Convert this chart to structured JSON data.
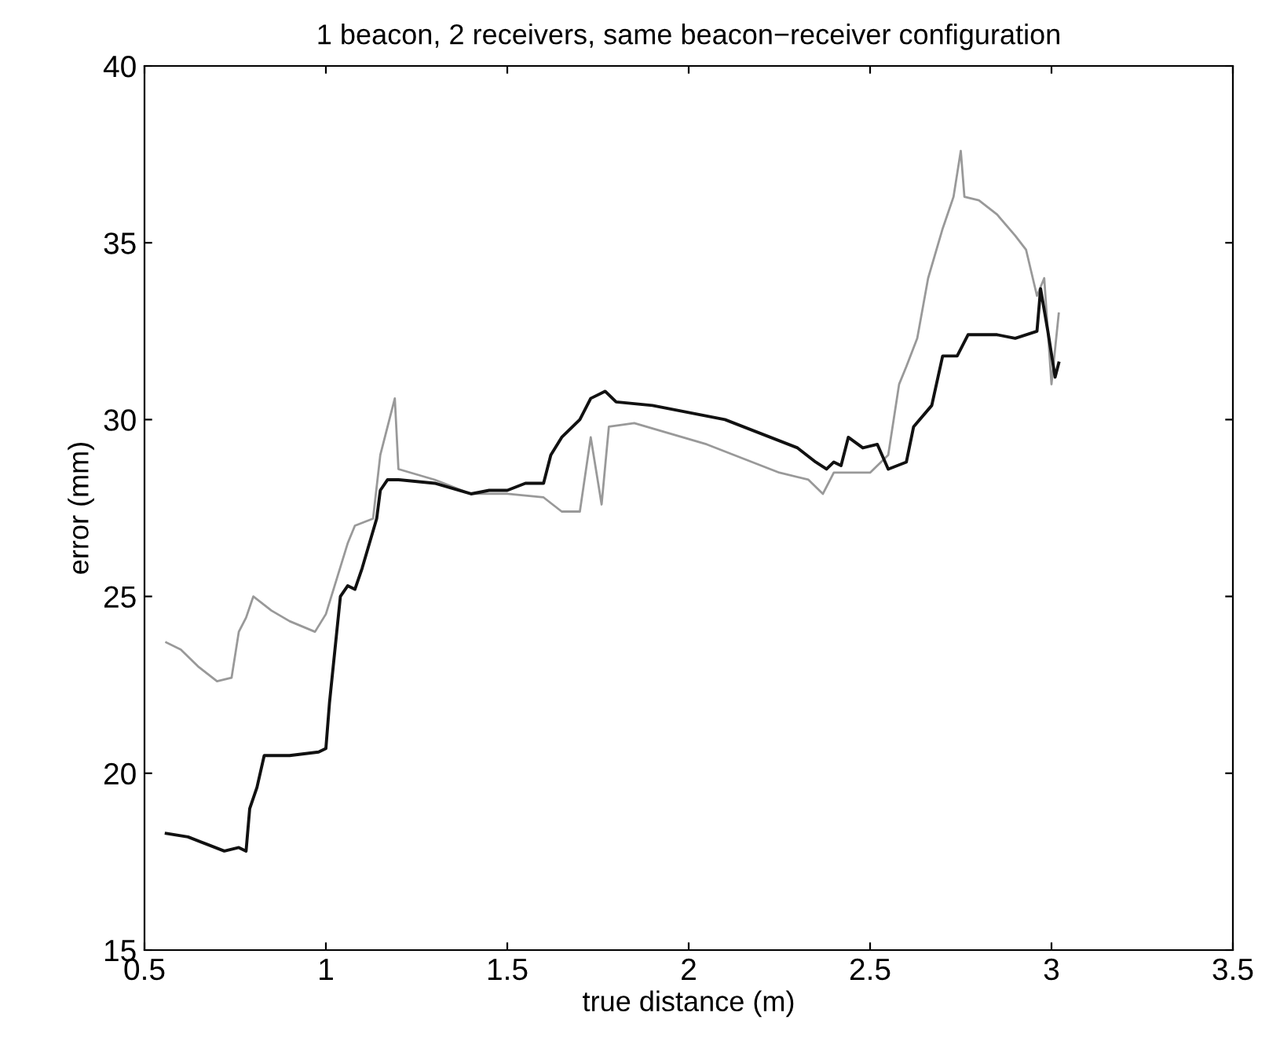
{
  "chart_data": {
    "type": "line",
    "title": "1 beacon, 2 receivers, same beacon−receiver configuration",
    "xlabel": "true distance (m)",
    "ylabel": "error (mm)",
    "xlim": [
      0.5,
      3.5
    ],
    "xticks": [
      0.5,
      1,
      1.5,
      2,
      2.5,
      3,
      3.5
    ],
    "ylim": [
      15,
      40
    ],
    "yticks": [
      15,
      20,
      25,
      30,
      35,
      40
    ],
    "grid": false,
    "marker": "none",
    "line_style": "solid",
    "series": [
      {
        "color": "#999999",
        "x": [
          0.56,
          0.6,
          0.65,
          0.7,
          0.74,
          0.76,
          0.78,
          0.8,
          0.85,
          0.9,
          0.97,
          1.0,
          1.03,
          1.06,
          1.08,
          1.13,
          1.15,
          1.17,
          1.19,
          1.2,
          1.3,
          1.4,
          1.5,
          1.6,
          1.65,
          1.7,
          1.73,
          1.76,
          1.78,
          1.85,
          1.95,
          2.05,
          2.15,
          2.25,
          2.33,
          2.37,
          2.4,
          2.5,
          2.55,
          2.58,
          2.6,
          2.63,
          2.66,
          2.7,
          2.73,
          2.75,
          2.76,
          2.8,
          2.85,
          2.9,
          2.93,
          2.96,
          2.98,
          3.0,
          3.02
        ],
        "values": [
          23.7,
          23.5,
          23.0,
          22.6,
          22.7,
          24.0,
          24.4,
          25.0,
          24.6,
          24.3,
          24.0,
          24.5,
          25.5,
          26.5,
          27.0,
          27.2,
          29.0,
          29.8,
          30.6,
          28.6,
          28.3,
          27.9,
          27.9,
          27.8,
          27.4,
          27.4,
          29.5,
          27.6,
          29.8,
          29.9,
          29.6,
          29.3,
          28.9,
          28.5,
          28.3,
          27.9,
          28.5,
          28.5,
          29.0,
          31.0,
          31.5,
          32.3,
          34.0,
          35.4,
          36.3,
          37.6,
          36.3,
          36.2,
          35.8,
          35.2,
          34.8,
          33.5,
          34.0,
          31.0,
          33.0
        ]
      },
      {
        "color": "#111111",
        "x": [
          0.56,
          0.62,
          0.67,
          0.72,
          0.76,
          0.78,
          0.79,
          0.81,
          0.83,
          0.9,
          0.98,
          1.0,
          1.01,
          1.03,
          1.04,
          1.06,
          1.08,
          1.1,
          1.12,
          1.14,
          1.15,
          1.17,
          1.2,
          1.3,
          1.4,
          1.45,
          1.5,
          1.55,
          1.6,
          1.62,
          1.65,
          1.7,
          1.73,
          1.77,
          1.8,
          1.9,
          2.0,
          2.1,
          2.2,
          2.3,
          2.35,
          2.38,
          2.4,
          2.42,
          2.44,
          2.48,
          2.52,
          2.55,
          2.6,
          2.62,
          2.67,
          2.7,
          2.74,
          2.77,
          2.85,
          2.9,
          2.96,
          2.97,
          2.99,
          3.01,
          3.02
        ],
        "values": [
          18.3,
          18.2,
          18.0,
          17.8,
          17.9,
          17.8,
          19.0,
          19.6,
          20.5,
          20.5,
          20.6,
          20.7,
          22.0,
          24.0,
          25.0,
          25.3,
          25.2,
          25.8,
          26.5,
          27.2,
          28.0,
          28.3,
          28.3,
          28.2,
          27.9,
          28.0,
          28.0,
          28.2,
          28.2,
          29.0,
          29.5,
          30.0,
          30.6,
          30.8,
          30.5,
          30.4,
          30.2,
          30.0,
          29.6,
          29.2,
          28.8,
          28.6,
          28.8,
          28.7,
          29.5,
          29.2,
          29.3,
          28.6,
          28.8,
          29.8,
          30.4,
          31.8,
          31.8,
          32.4,
          32.4,
          32.3,
          32.5,
          33.7,
          32.5,
          31.2,
          31.6
        ]
      }
    ]
  }
}
